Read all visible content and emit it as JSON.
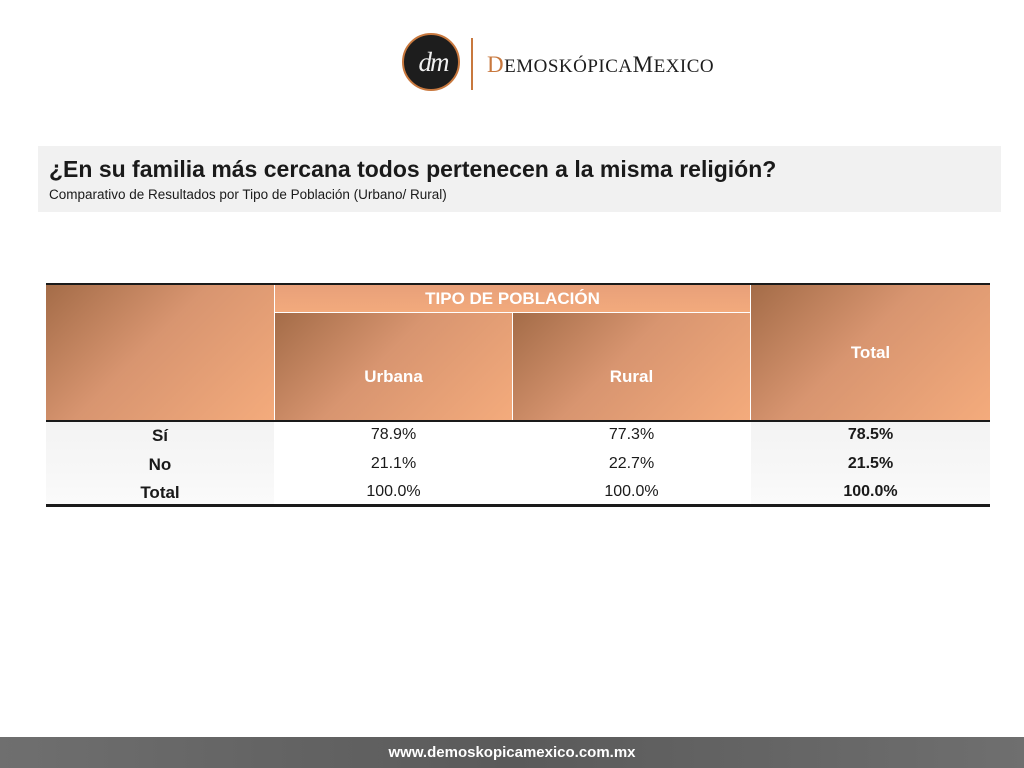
{
  "logo": {
    "monogram": "dm",
    "name_first": "D",
    "name_mid": "EMOSKÓPICA",
    "name_second": "M",
    "name_end": "EXICO"
  },
  "header": {
    "title": "¿En su familia más cercana todos pertenecen a la misma religión?",
    "subtitle": "Comparativo de Resultados por Tipo de Población (Urbano/ Rural)"
  },
  "table": {
    "group_header": "TIPO DE POBLACIÓN",
    "columns": [
      "Urbana",
      "Rural",
      "Total"
    ],
    "rows": [
      {
        "label": "Sí",
        "values": [
          "78.9%",
          "77.3%",
          "78.5%"
        ]
      },
      {
        "label": "No",
        "values": [
          "21.1%",
          "22.7%",
          "21.5%"
        ]
      },
      {
        "label": "Total",
        "values": [
          "100.0%",
          "100.0%",
          "100.0%"
        ]
      }
    ]
  },
  "footer": {
    "url": "www.demoskopicamexico.com.mx"
  },
  "colors": {
    "accent": "#c8783e",
    "header_gradient_light": "#f4ab7c",
    "header_gradient_dark": "#a46c48",
    "footer_bar": "#5f5f5f"
  }
}
